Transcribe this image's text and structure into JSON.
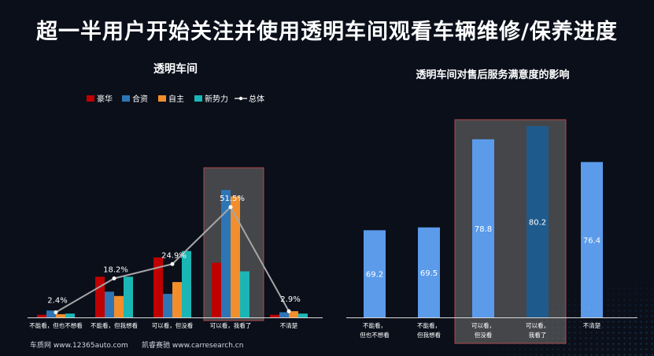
{
  "header": {
    "title": "超一半用户开始关注并使用透明车间观看车辆维修/保养进度"
  },
  "footer": {
    "source1": "车质网 www.12365auto.com",
    "source2": "凯睿赛驰 www.carresearch.cn"
  },
  "colors": {
    "luxury": "#c00000",
    "joint": "#2e75b6",
    "domestic": "#f28e2b",
    "newforce": "#1ab6b6",
    "total": "#a6a6a6",
    "bar2_light": "#5b9bea",
    "bar2_dark": "#1f5a8c",
    "highlight": "#5a5a5a"
  },
  "chart_data": [
    {
      "type": "bar",
      "title": "透明车间",
      "categories": [
        "不能看，但也不想看",
        "不能看，但我想看",
        "可以看，但没看",
        "可以看，我看了",
        "不清楚"
      ],
      "series": [
        {
          "name": "豪华",
          "values": [
            1.2,
            19.0,
            28.0,
            25.5,
            1.2
          ]
        },
        {
          "name": "合资",
          "values": [
            3.2,
            12.0,
            11.0,
            59.5,
            2.4
          ]
        },
        {
          "name": "自主",
          "values": [
            1.5,
            10.0,
            16.5,
            56.5,
            2.9
          ]
        },
        {
          "name": "新势力",
          "values": [
            1.8,
            19.0,
            31.0,
            21.5,
            1.8
          ]
        }
      ],
      "line": {
        "name": "总体",
        "values": [
          2.4,
          18.2,
          24.9,
          51.5,
          2.9
        ]
      },
      "data_labels": [
        "2.4%",
        "18.2%",
        "24.9%",
        "51.5%",
        "2.9%"
      ],
      "highlight_category": "可以看，我看了",
      "ylim": [
        0,
        65
      ],
      "legend_position": "top"
    },
    {
      "type": "bar",
      "title": "透明车间对售后服务满意度的影响",
      "categories": [
        "不能看，但也不想看",
        "不能看，但我想看",
        "可以看，但没看",
        "可以看，我看了",
        "不清楚"
      ],
      "values": [
        69.2,
        69.5,
        78.8,
        80.2,
        76.4
      ],
      "data_labels": [
        "69.2",
        "69.5",
        "78.8",
        "80.2",
        "76.4"
      ],
      "highlight_categories": [
        "可以看，但没看",
        "可以看，我看了"
      ],
      "ylim": [
        60,
        82
      ]
    }
  ]
}
